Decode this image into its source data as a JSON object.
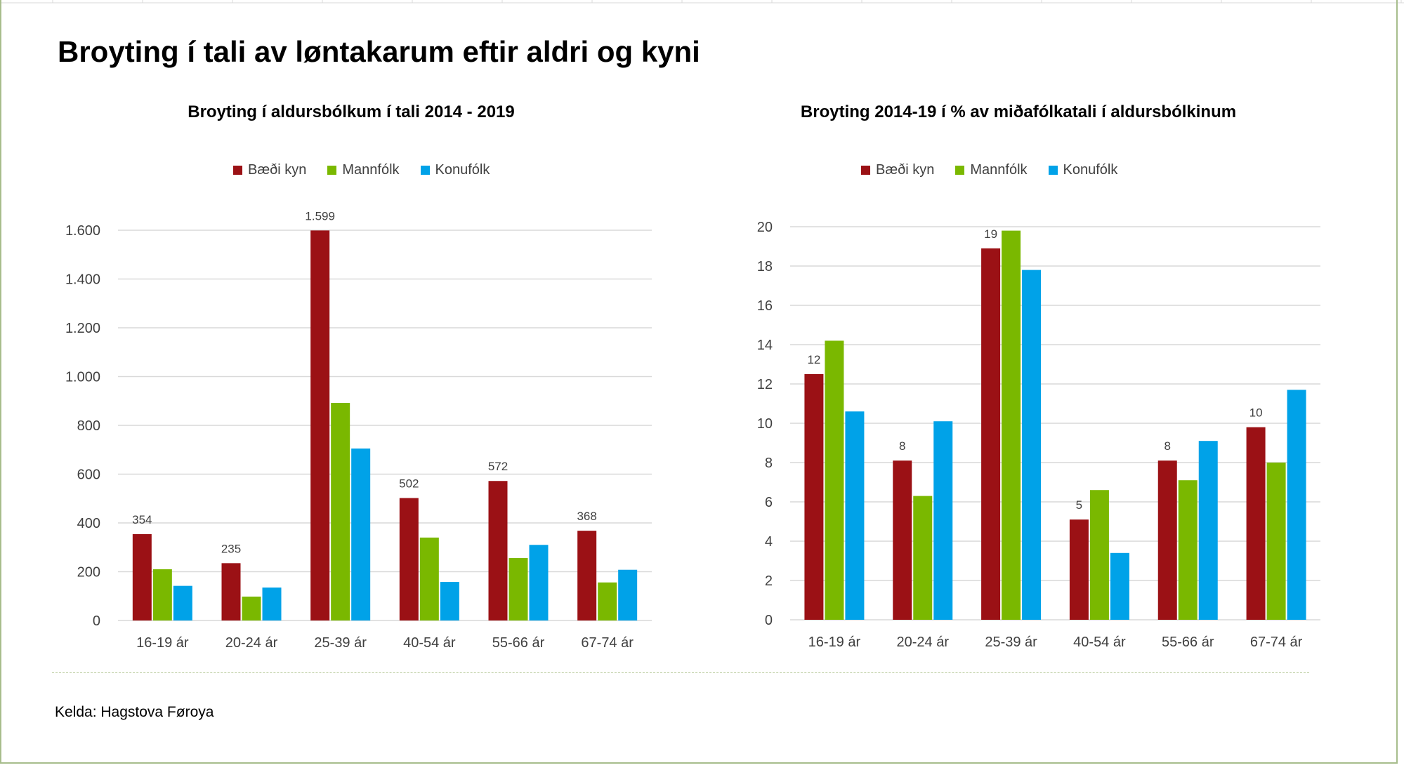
{
  "title": "Broyting í tali av løntakarum eftir aldri og kyni",
  "source": "Kelda: Hagstova Føroya",
  "legend": [
    {
      "label": "Bæði kyn",
      "color": "#9b1115"
    },
    {
      "label": "Mannfólk",
      "color": "#7ab800"
    },
    {
      "label": "Konufólk",
      "color": "#00a2e8"
    }
  ],
  "chart_data": [
    {
      "type": "bar",
      "title": "Broyting í aldursbólkum í tali 2014 - 2019",
      "categories": [
        "16-19 ár",
        "20-24 ár",
        "25-39 ár",
        "40-54 ár",
        "55-66 ár",
        "67-74 ár"
      ],
      "series": [
        {
          "name": "Bæði kyn",
          "color": "#9b1115",
          "values": [
            354,
            235,
            1599,
            502,
            572,
            368
          ],
          "data_labels": [
            "354",
            "235",
            "1.599",
            "502",
            "572",
            "368"
          ]
        },
        {
          "name": "Mannfólk",
          "color": "#7ab800",
          "values": [
            210,
            98,
            892,
            340,
            256,
            156
          ]
        },
        {
          "name": "Konufólk",
          "color": "#00a2e8",
          "values": [
            142,
            135,
            705,
            158,
            310,
            208
          ]
        }
      ],
      "ylim": [
        0,
        1600
      ],
      "yticks": [
        0,
        200,
        400,
        600,
        800,
        1000,
        1200,
        1400,
        1600
      ],
      "ytick_labels": [
        "0",
        "200",
        "400",
        "600",
        "800",
        "1.000",
        "1.200",
        "1.400",
        "1.600"
      ],
      "grid": true,
      "legend_position": "top"
    },
    {
      "type": "bar",
      "title": "Broyting 2014-19 í % av miðafólkatali í aldursbólkinum",
      "categories": [
        "16-19 ár",
        "20-24 ár",
        "25-39 ár",
        "40-54 ár",
        "55-66 ár",
        "67-74 ár"
      ],
      "series": [
        {
          "name": "Bæði kyn",
          "color": "#9b1115",
          "values": [
            12.5,
            8.1,
            18.9,
            5.1,
            8.1,
            9.8
          ],
          "data_labels": [
            "12",
            "8",
            "19",
            "5",
            "8",
            "10"
          ]
        },
        {
          "name": "Mannfólk",
          "color": "#7ab800",
          "values": [
            14.2,
            6.3,
            19.8,
            6.6,
            7.1,
            8.0
          ]
        },
        {
          "name": "Konufólk",
          "color": "#00a2e8",
          "values": [
            10.6,
            10.1,
            17.8,
            3.4,
            9.1,
            11.7
          ]
        }
      ],
      "ylim": [
        0,
        20
      ],
      "yticks": [
        0,
        2,
        4,
        6,
        8,
        10,
        12,
        14,
        16,
        18,
        20
      ],
      "ytick_labels": [
        "0",
        "2",
        "4",
        "6",
        "8",
        "10",
        "12",
        "14",
        "16",
        "18",
        "20"
      ],
      "grid": true,
      "legend_position": "top"
    }
  ]
}
